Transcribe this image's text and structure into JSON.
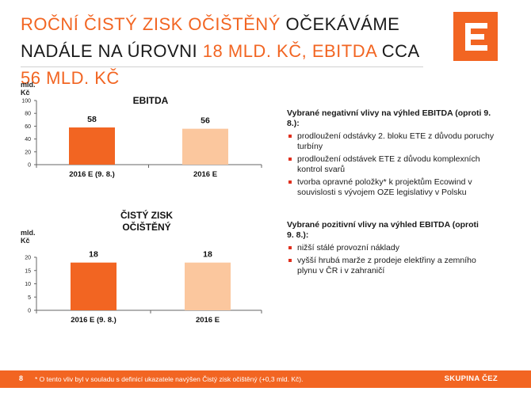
{
  "title": {
    "part1": "ROČNÍ ČISTÝ ZISK OČIŠTĚNÝ",
    "part2": " OČEKÁVÁME NADÁLE NA ÚROVNI ",
    "part3": "18 MLD. KČ, EBITDA",
    "part4": " CCA ",
    "part5": "56 MLD. KČ"
  },
  "colors": {
    "accent": "#f26522",
    "bar_actual": "#f26522",
    "bar_plan": "#fbc79e",
    "bullet": "#e0301e"
  },
  "logo": {
    "icon": "cez-logo-icon"
  },
  "chart_data": [
    {
      "type": "bar",
      "title": "EBITDA",
      "ylabel": "mld. Kč",
      "categories": [
        "2016 E (9. 8.)",
        "2016 E"
      ],
      "values": [
        58,
        56
      ],
      "data_labels": [
        "58",
        "56"
      ],
      "ylim": [
        0,
        100
      ],
      "yticks": [
        0,
        20,
        40,
        60,
        80,
        100
      ],
      "ytick_labels": [
        "0",
        "20",
        "40",
        "60",
        "80",
        "100"
      ],
      "bar_colors": [
        "#f26522",
        "#fbc79e"
      ],
      "grid": false,
      "legend": "none"
    },
    {
      "type": "bar",
      "title": "ČISTÝ ZISK OČIŠTĚNÝ",
      "title_lines": [
        "ČISTÝ ZISK",
        "OČIŠTĚNÝ"
      ],
      "ylabel": "mld. Kč",
      "categories": [
        "2016 E (9. 8.)",
        "2016 E"
      ],
      "values": [
        18,
        18
      ],
      "data_labels": [
        "18",
        "18"
      ],
      "ylim": [
        0,
        20
      ],
      "yticks": [
        0,
        5,
        10,
        15,
        20
      ],
      "ytick_labels": [
        "0",
        "5",
        "10",
        "15",
        "20"
      ],
      "bar_colors": [
        "#f26522",
        "#fbc79e"
      ],
      "grid": false,
      "legend": "none"
    }
  ],
  "negative": {
    "heading": "Vybrané negativní vlivy na výhled EBITDA (oproti 9. 8.):",
    "items": [
      "prodloužení odstávky 2. bloku ETE z důvodu poruchy turbíny",
      "prodloužení odstávek ETE z důvodu komplexních kontrol svarů",
      "tvorba opravné položky* k projektům Ecowind v souvislosti s vývojem OZE legislativy v Polsku"
    ]
  },
  "positive": {
    "heading": "Vybrané pozitivní vlivy na výhled EBITDA (oproti 9. 8.):",
    "items": [
      "nižší stálé provozní náklady",
      "vyšší hrubá marže z prodeje elektřiny a zemního plynu v ČR i v zahraničí"
    ]
  },
  "footer": {
    "page_number": "8",
    "note": "* O tento vliv byl v souladu s definicí ukazatele navýšen Čistý zisk očištěný (+0,3 mld. Kč).",
    "brand": "SKUPINA ČEZ"
  }
}
